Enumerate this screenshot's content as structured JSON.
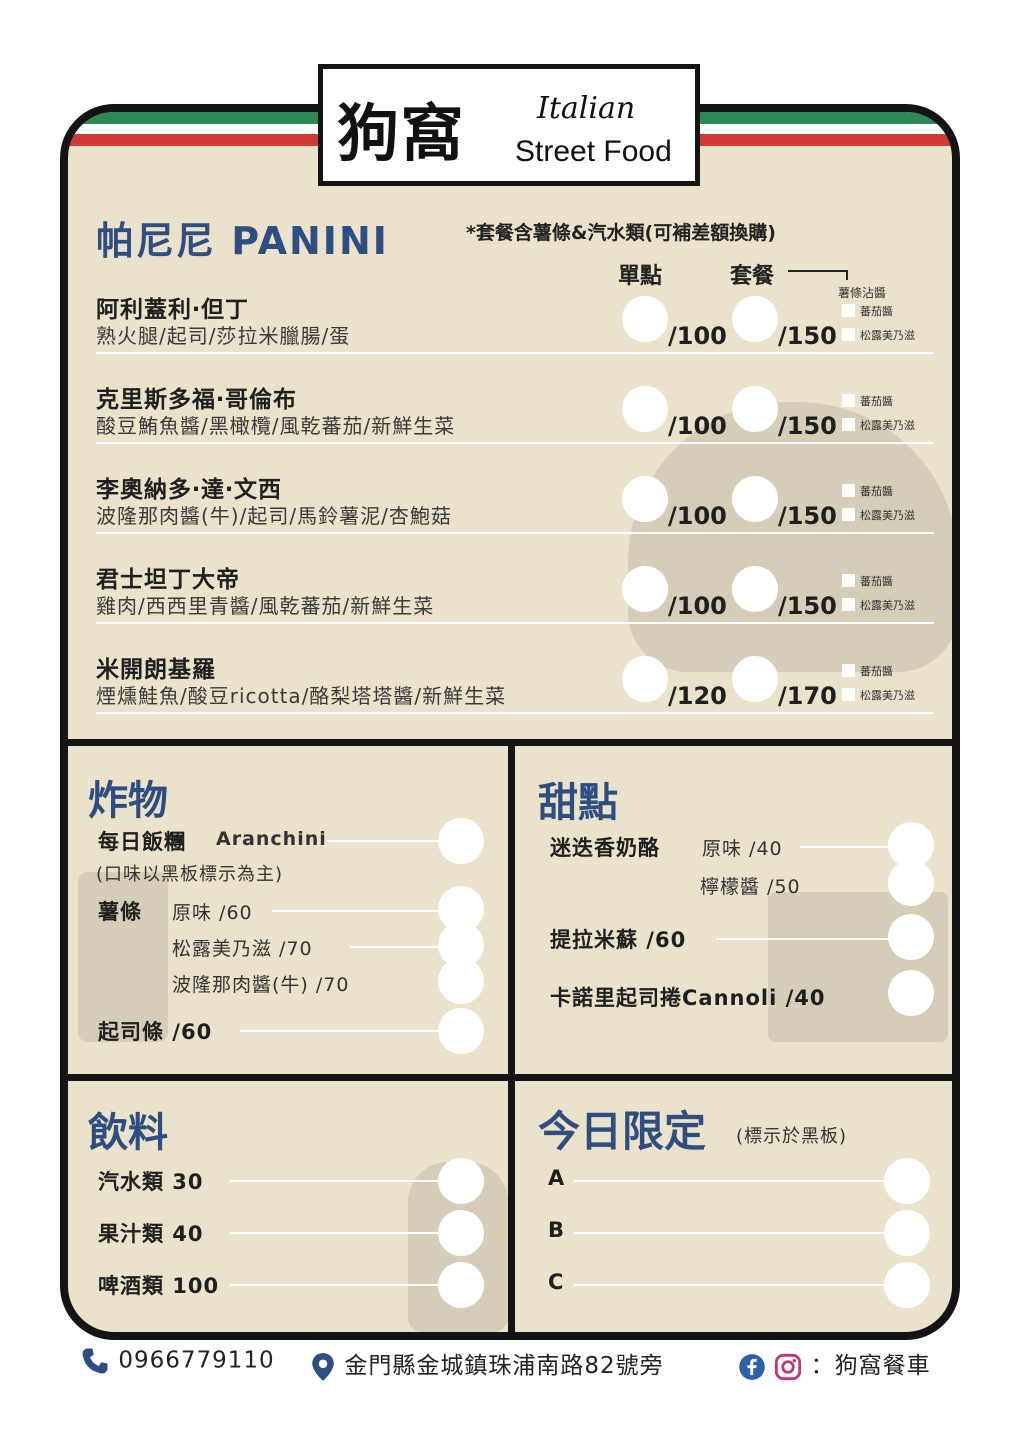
{
  "logo": {
    "chinese": "狗窩",
    "italian": "Italian",
    "street_food": "Street Food"
  },
  "panini": {
    "title": "帕尼尼 PANINI",
    "note": "*套餐含薯條&汽水類(可補差額換購)",
    "col_single": "單點",
    "col_set": "套餐",
    "sauce_header": "薯條沾醬",
    "sauce_options": [
      "蕃茄醬",
      "松露美乃滋"
    ],
    "items": [
      {
        "name": "阿利蓋利‧但丁",
        "desc": "熟火腿/起司/莎拉米臘腸/蛋",
        "single": "/100",
        "set": "/150"
      },
      {
        "name": "克里斯多福‧哥倫布",
        "desc": "酸豆鮪魚醬/黑橄欖/風乾蕃茄/新鮮生菜",
        "single": "/100",
        "set": "/150"
      },
      {
        "name": "李奧納多‧達‧文西",
        "desc": "波隆那肉醬(牛)/起司/馬鈴薯泥/杏鮑菇",
        "single": "/100",
        "set": "/150"
      },
      {
        "name": "君士坦丁大帝",
        "desc": "雞肉/西西里青醬/風乾蕃茄/新鮮生菜",
        "single": "/100",
        "set": "/150"
      },
      {
        "name": "米開朗基羅",
        "desc": "煙燻鮭魚/酸豆ricotta/酪梨塔塔醬/新鮮生菜",
        "single": "/120",
        "set": "/170"
      }
    ]
  },
  "fried": {
    "title": "炸物",
    "arancini_name": "每日飯糰",
    "arancini_en": "Aranchini",
    "arancini_note": "(口味以黑板標示為主)",
    "fries_name": "薯條",
    "fries_options": [
      "原味 /60",
      "松露美乃滋 /70",
      "波隆那肉醬(牛) /70"
    ],
    "cheese_stick": "起司條 /60"
  },
  "dessert": {
    "title": "甜點",
    "panna_cotta_name": "迷迭香奶酪",
    "panna_cotta_options": [
      "原味 /40",
      "檸檬醬 /50"
    ],
    "tiramisu": "提拉米蘇 /60",
    "cannoli": "卡諾里起司捲Cannoli /40"
  },
  "drinks": {
    "title": "飲料",
    "items": [
      "汽水類 30",
      "果汁類 40",
      "啤酒類 100"
    ]
  },
  "special": {
    "title": "今日限定",
    "note": "(標示於黑板)",
    "items": [
      "A",
      "B",
      "C"
    ]
  },
  "footer": {
    "phone": "0966779110",
    "address": "金門縣金城鎮珠浦南路82號旁",
    "social": "：狗窩餐車"
  }
}
